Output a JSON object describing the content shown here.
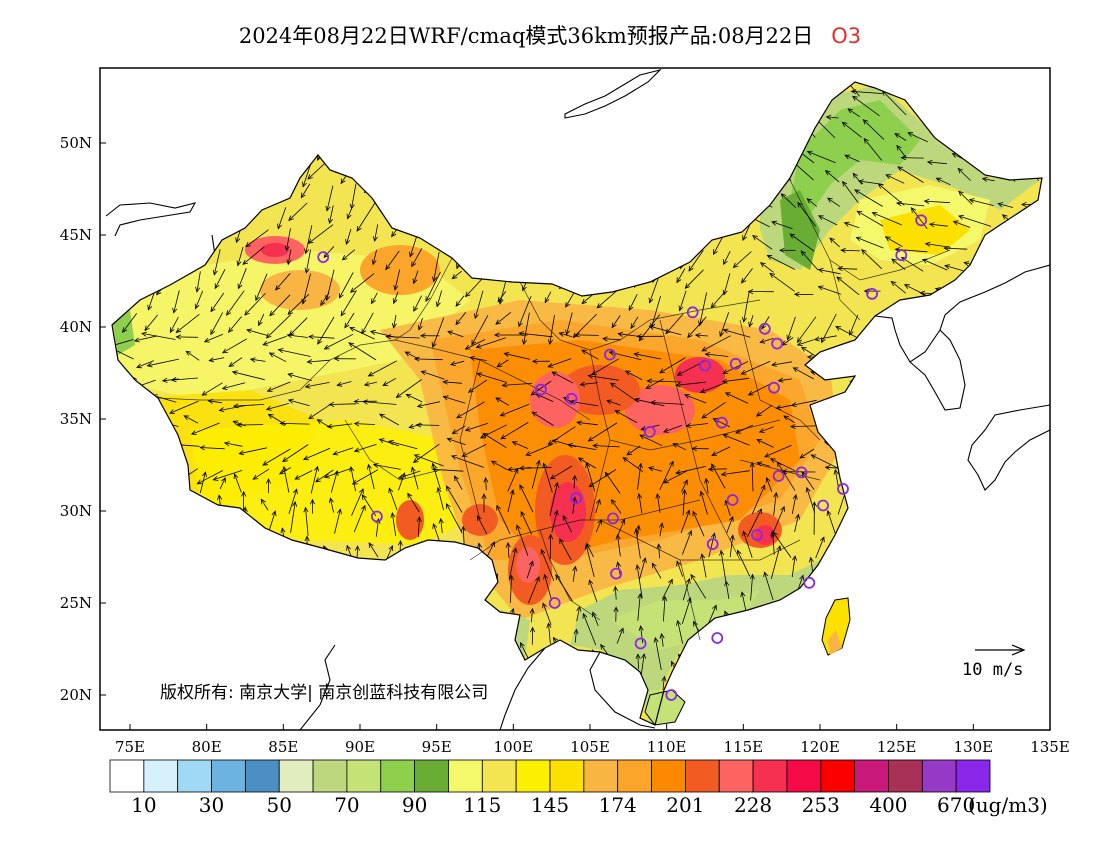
{
  "title": {
    "main": "2024年08月22日WRF/cmaq模式36km预报产品:08月22日",
    "species": "O3",
    "species_color": "#e03030"
  },
  "map": {
    "lon_labels": [
      "75E",
      "80E",
      "85E",
      "90E",
      "95E",
      "100E",
      "105E",
      "110E",
      "115E",
      "120E",
      "125E",
      "130E",
      "135E"
    ],
    "lat_labels": [
      "50N",
      "45N",
      "40N",
      "35N",
      "30N",
      "25N",
      "20N"
    ],
    "copyright": "版权所有: 南京大学| 南京创蓝科技有限公司",
    "wind_reference": "10 m/s"
  },
  "colorbar": {
    "colors": [
      "#ffffff",
      "#d6f0fc",
      "#9fd9f5",
      "#6cb3e0",
      "#4b8fc4",
      "#e2edbf",
      "#bdd87c",
      "#c4e276",
      "#8ed04e",
      "#6aad34",
      "#f4f86b",
      "#f3e452",
      "#fcf000",
      "#fce000",
      "#f9b544",
      "#fba52a",
      "#fc8a00",
      "#f25c23",
      "#fd6361",
      "#f6304f",
      "#f40a46",
      "#fc0000",
      "#c9197a",
      "#a83157",
      "#9739c7",
      "#8a27e8"
    ],
    "labels": [
      "10",
      "30",
      "50",
      "70",
      "90",
      "115",
      "145",
      "174",
      "201",
      "228",
      "253",
      "400",
      "670"
    ],
    "unit": "(ug/m3)"
  },
  "stations": [
    {
      "lon": 87.6,
      "lat": 43.8
    },
    {
      "lon": 101.8,
      "lat": 36.6
    },
    {
      "lon": 103.8,
      "lat": 36.1
    },
    {
      "lon": 106.3,
      "lat": 38.5
    },
    {
      "lon": 111.7,
      "lat": 40.8
    },
    {
      "lon": 112.5,
      "lat": 37.9
    },
    {
      "lon": 114.5,
      "lat": 38.0
    },
    {
      "lon": 116.4,
      "lat": 39.9
    },
    {
      "lon": 117.2,
      "lat": 39.1
    },
    {
      "lon": 117.0,
      "lat": 36.7
    },
    {
      "lon": 113.6,
      "lat": 34.8
    },
    {
      "lon": 108.9,
      "lat": 34.3
    },
    {
      "lon": 117.3,
      "lat": 31.9
    },
    {
      "lon": 118.8,
      "lat": 32.1
    },
    {
      "lon": 121.5,
      "lat": 31.2
    },
    {
      "lon": 120.2,
      "lat": 30.3
    },
    {
      "lon": 114.3,
      "lat": 30.6
    },
    {
      "lon": 113.0,
      "lat": 28.2
    },
    {
      "lon": 115.9,
      "lat": 28.7
    },
    {
      "lon": 119.3,
      "lat": 26.1
    },
    {
      "lon": 104.1,
      "lat": 30.7
    },
    {
      "lon": 106.5,
      "lat": 29.6
    },
    {
      "lon": 106.7,
      "lat": 26.6
    },
    {
      "lon": 102.7,
      "lat": 25.0
    },
    {
      "lon": 108.3,
      "lat": 22.8
    },
    {
      "lon": 113.3,
      "lat": 23.1
    },
    {
      "lon": 110.3,
      "lat": 20.0
    },
    {
      "lon": 91.1,
      "lat": 29.7
    },
    {
      "lon": 123.4,
      "lat": 41.8
    },
    {
      "lon": 125.3,
      "lat": 43.9
    },
    {
      "lon": 126.6,
      "lat": 45.8
    }
  ]
}
